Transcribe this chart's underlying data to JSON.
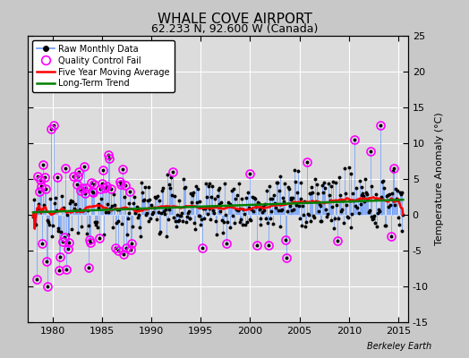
{
  "title": "WHALE COVE AIRPORT",
  "subtitle": "62.233 N, 92.600 W (Canada)",
  "ylabel": "Temperature Anomaly (°C)",
  "xlim": [
    1977.5,
    2016.0
  ],
  "ylim": [
    -15,
    25
  ],
  "yticks": [
    -15,
    -10,
    -5,
    0,
    5,
    10,
    15,
    20,
    25
  ],
  "xticks": [
    1980,
    1985,
    1990,
    1995,
    2000,
    2005,
    2010,
    2015
  ],
  "bg_color": "#d8d8d8",
  "plot_bg_color": "#dcdcdc",
  "grid_color": "#ffffff",
  "raw_line_color": "#6699ff",
  "raw_dot_color": "black",
  "qc_fail_color": "magenta",
  "moving_avg_color": "red",
  "trend_color": "green",
  "watermark": "Berkeley Earth",
  "seed": 12345
}
